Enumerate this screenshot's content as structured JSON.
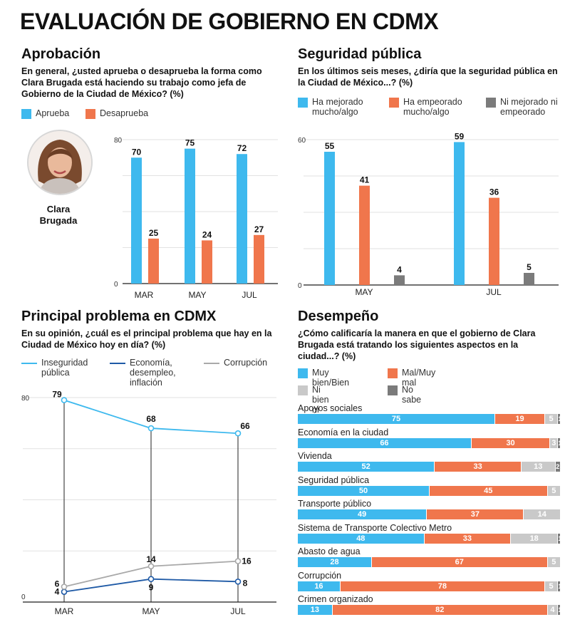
{
  "title": "EVALUACIÓN DE GOBIERNO EN CDMX",
  "colors": {
    "blue": "#3eb9ee",
    "orange": "#f0764c",
    "darkblue": "#1f5aa6",
    "gray": "#a9a9a9",
    "lightgray": "#c9c9c9",
    "darkgray": "#7b7b7b"
  },
  "approval": {
    "title": "Aprobación",
    "question": "En general, ¿usted aprueba o desaprueba la forma como Clara Brugada está haciendo su trabajo como jefa de Gobierno de la Ciudad de México? (%)",
    "person_name": "Clara Brugada",
    "legend": [
      "Aprueba",
      "Desaprueba"
    ]
  },
  "security": {
    "title": "Seguridad pública",
    "question": "En los últimos seis meses, ¿diría que la seguridad pública en la Ciudad de México...? (%)",
    "legend": [
      "Ha mejorado mucho/algo",
      "Ha empeorado mucho/algo",
      "Ni mejorado ni empeorado"
    ]
  },
  "problem": {
    "title": "Principal problema en CDMX",
    "question": "En su opinión, ¿cuál es el principal problema que hay en la Ciudad de México hoy en día? (%)",
    "legend": [
      "Inseguridad pública",
      "Economía, desempleo, inflación",
      "Corrupción"
    ]
  },
  "performance": {
    "title": "Desempeño",
    "question": "¿Cómo calificaría la manera en que el gobierno de Clara Brugada está tratando los siguientes aspectos en la ciudad...? (%)",
    "legend": [
      "Muy bien/Bien",
      "Mal/Muy mal",
      "Ni bien ni mal",
      "No sabe"
    ]
  },
  "chart_data": [
    {
      "type": "bar",
      "title": "Aprobación",
      "categories": [
        "MAR",
        "MAY",
        "JUL"
      ],
      "series": [
        {
          "name": "Aprueba",
          "values": [
            70,
            75,
            72
          ]
        },
        {
          "name": "Desaprueba",
          "values": [
            25,
            24,
            27
          ]
        }
      ],
      "ylim": [
        0,
        80
      ],
      "yticks": [
        0,
        80
      ]
    },
    {
      "type": "bar",
      "title": "Seguridad pública",
      "categories": [
        "MAY",
        "JUL"
      ],
      "series": [
        {
          "name": "Ha mejorado mucho/algo",
          "values": [
            55,
            59
          ]
        },
        {
          "name": "Ha empeorado mucho/algo",
          "values": [
            41,
            36
          ]
        },
        {
          "name": "Ni mejorado ni empeorado",
          "values": [
            4,
            5
          ]
        }
      ],
      "ylim": [
        0,
        60
      ],
      "yticks": [
        0,
        60
      ]
    },
    {
      "type": "line",
      "title": "Principal problema en CDMX",
      "categories": [
        "MAR",
        "MAY",
        "JUL"
      ],
      "series": [
        {
          "name": "Inseguridad pública",
          "values": [
            79,
            68,
            66
          ]
        },
        {
          "name": "Economía, desempleo, inflación",
          "values": [
            4,
            9,
            8
          ]
        },
        {
          "name": "Corrupción",
          "values": [
            6,
            14,
            16
          ]
        }
      ],
      "ylim": [
        0,
        80
      ],
      "yticks": [
        0,
        80
      ]
    },
    {
      "type": "bar",
      "orientation": "horizontal-stacked",
      "title": "Desempeño",
      "series_names": [
        "Muy bien/Bien",
        "Mal/Muy mal",
        "Ni bien ni mal",
        "No sabe"
      ],
      "categories": [
        "Apoyos sociales",
        "Economía en la ciudad",
        "Vivienda",
        "Seguridad pública",
        "Transporte público",
        "Sistema de Transporte Colectivo Metro",
        "Abasto de agua",
        "Corrupción",
        "Crimen organizado"
      ],
      "values": [
        [
          75,
          19,
          5,
          1
        ],
        [
          66,
          30,
          3,
          1
        ],
        [
          52,
          33,
          13,
          2
        ],
        [
          50,
          45,
          5,
          0
        ],
        [
          49,
          37,
          14,
          0
        ],
        [
          48,
          33,
          18,
          1
        ],
        [
          28,
          67,
          5,
          0
        ],
        [
          16,
          78,
          5,
          1
        ],
        [
          13,
          82,
          4,
          1
        ]
      ]
    }
  ]
}
